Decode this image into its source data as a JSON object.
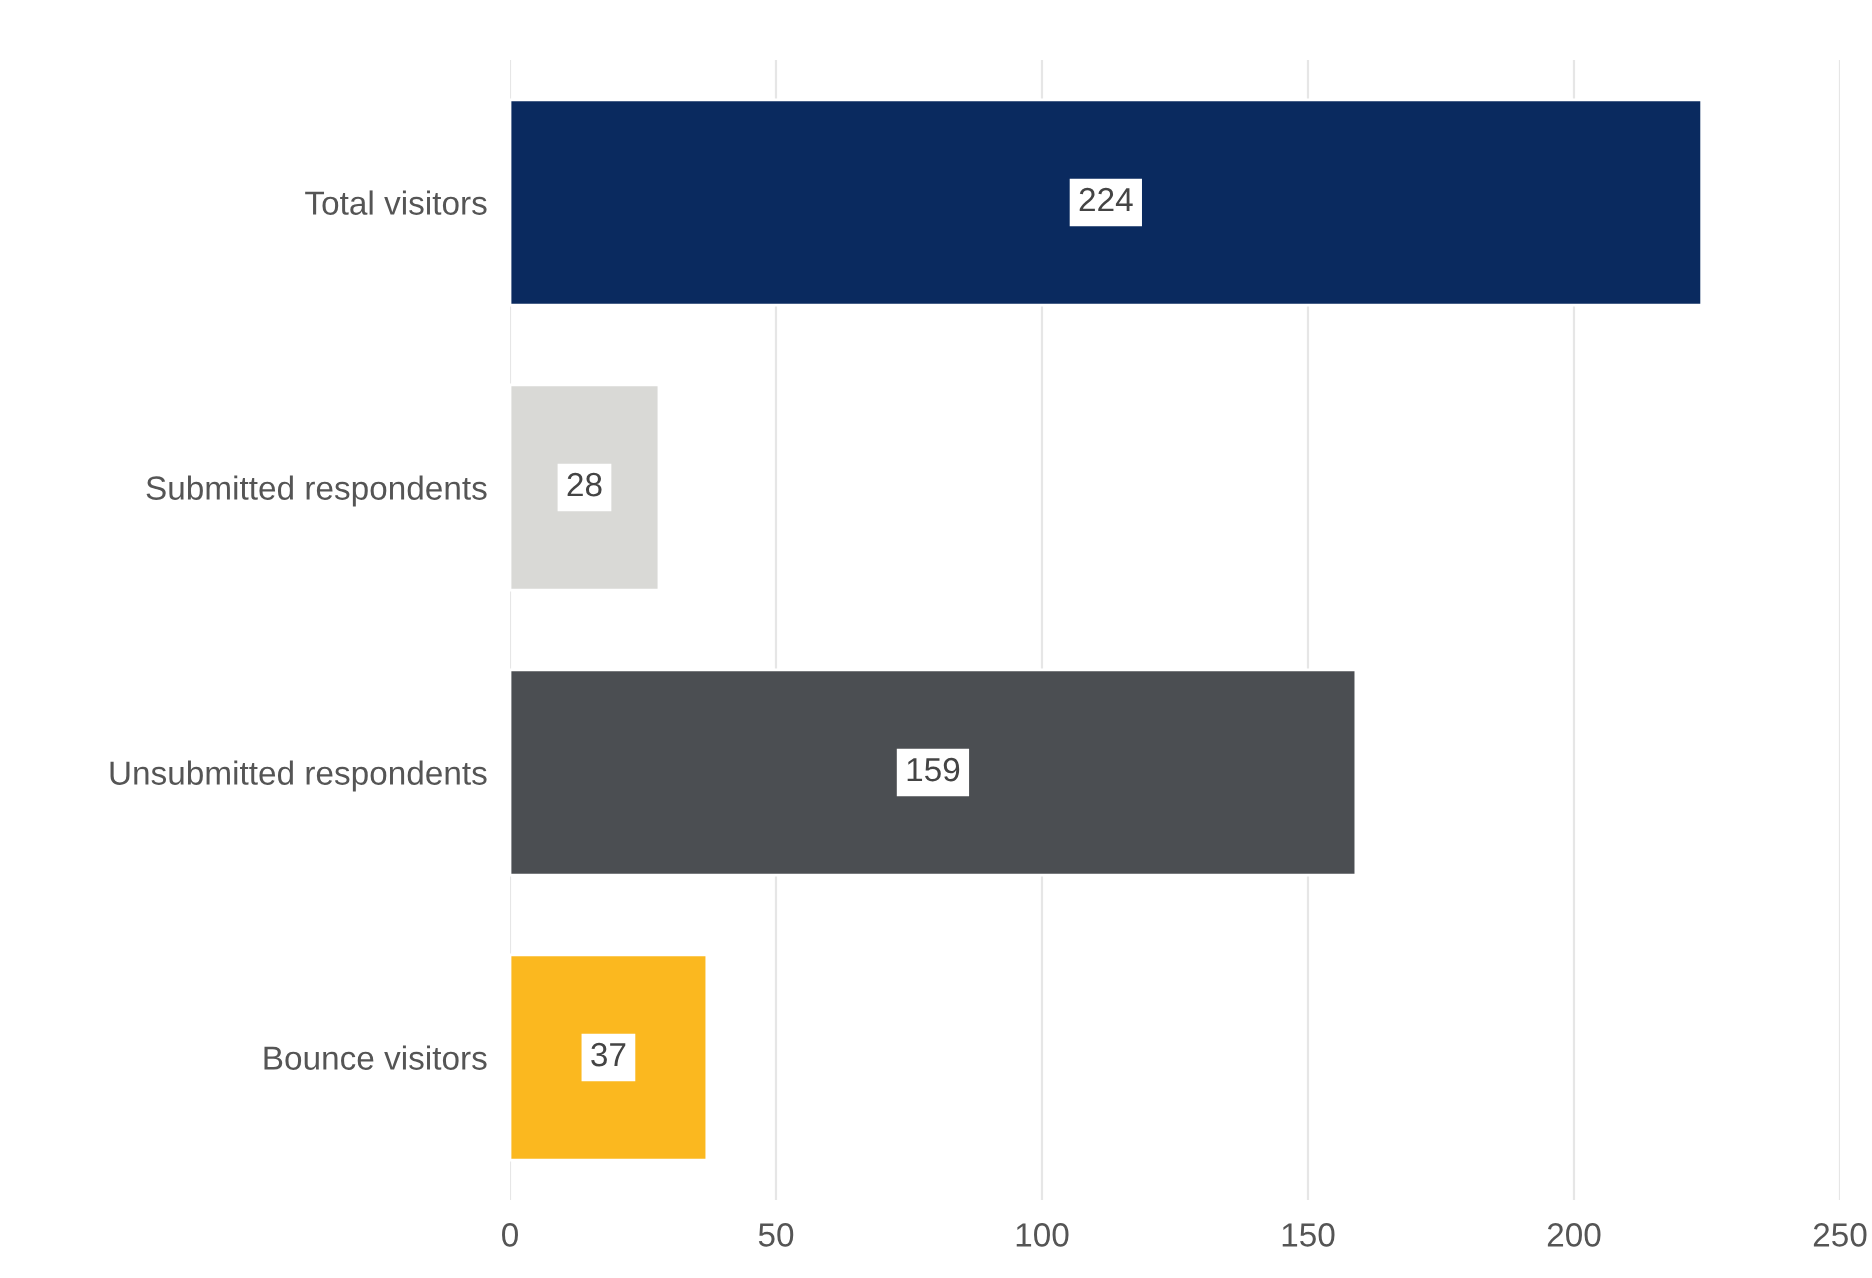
{
  "chart_data": {
    "type": "bar",
    "orientation": "horizontal",
    "categories": [
      "Total visitors",
      "Submitted respondents",
      "Unsubmitted respondents",
      "Bounce visitors"
    ],
    "values": [
      224,
      28,
      159,
      37
    ],
    "colors": [
      "#0a2a5f",
      "#d9d9d6",
      "#4b4e52",
      "#fbb81f"
    ],
    "xlim": [
      0,
      250
    ],
    "xticks": [
      0,
      50,
      100,
      150,
      200,
      250
    ],
    "grid": "x",
    "data_labels": true
  }
}
